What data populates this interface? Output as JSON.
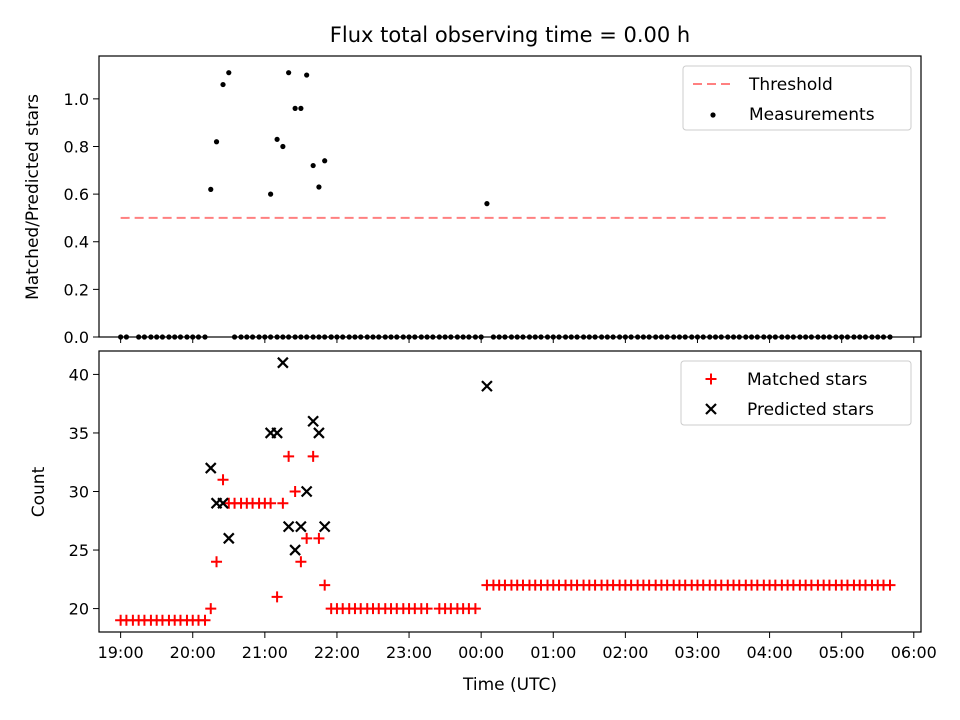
{
  "chart_data": [
    {
      "type": "scatter",
      "title": "Flux total observing time = 0.00 h",
      "xlabel": "",
      "ylabel": "Matched/Predicted stars",
      "xlim": [
        -0.3,
        11.1
      ],
      "ylim": [
        0,
        1.18
      ],
      "xticks": [
        0,
        1,
        2,
        3,
        4,
        5,
        6,
        7,
        8,
        9,
        10,
        11
      ],
      "xtick_labels": [
        "",
        "",
        "",
        "",
        "",
        "",
        "",
        "",
        "",
        "",
        "",
        ""
      ],
      "yticks": [
        0.0,
        0.2,
        0.4,
        0.6,
        0.8,
        1.0
      ],
      "ytick_labels": [
        "0.0",
        "0.2",
        "0.4",
        "0.6",
        "0.8",
        "1.0"
      ],
      "legend_position": "top-right",
      "legend": [
        "Threshold",
        "Measurements"
      ],
      "series": [
        {
          "name": "Threshold",
          "kind": "dashed-line",
          "color": "#ff8080",
          "x": [
            0.0,
            10.67
          ],
          "y": [
            0.5,
            0.5
          ]
        },
        {
          "name": "Measurements",
          "kind": "dot",
          "color": "#000000",
          "x": [
            0.0,
            0.08,
            0.25,
            0.33,
            0.42,
            0.5,
            0.58,
            0.67,
            0.75,
            0.83,
            0.92,
            1.0,
            1.08,
            1.17,
            1.25,
            1.33,
            1.42,
            1.5,
            1.58,
            1.67,
            1.75,
            1.83,
            1.92,
            2.0,
            2.08,
            2.17,
            2.25,
            2.33,
            2.42,
            2.5,
            2.58,
            2.67,
            2.75,
            2.83,
            2.92,
            3.0,
            3.08,
            3.17,
            3.25,
            3.33,
            3.42,
            3.5,
            3.58,
            3.67,
            3.75,
            3.83,
            3.92,
            4.0,
            4.08,
            4.17,
            4.25,
            4.33,
            4.42,
            4.5,
            4.58,
            4.67,
            4.75,
            4.83,
            4.92,
            5.0,
            5.08,
            5.17,
            5.25,
            5.33,
            5.42,
            5.5,
            5.58,
            5.67,
            5.75,
            5.83,
            5.92,
            6.0,
            6.08,
            6.17,
            6.25,
            6.33,
            6.42,
            6.5,
            6.58,
            6.67,
            6.75,
            6.83,
            6.92,
            7.0,
            7.08,
            7.17,
            7.25,
            7.33,
            7.42,
            7.5,
            7.58,
            7.67,
            7.75,
            7.83,
            7.92,
            8.0,
            8.08,
            8.17,
            8.25,
            8.33,
            8.42,
            8.5,
            8.58,
            8.67,
            8.75,
            8.83,
            8.92,
            9.0,
            9.08,
            9.17,
            9.25,
            9.33,
            9.42,
            9.5,
            9.58,
            9.67,
            9.75,
            9.83,
            9.92,
            10.0,
            10.08,
            10.17,
            10.25,
            10.33,
            10.42,
            10.5,
            10.58,
            10.67
          ],
          "y": [
            0,
            0,
            0,
            0,
            0,
            0,
            0,
            0,
            0,
            0,
            0,
            0,
            0,
            0,
            0.62,
            0.82,
            1.06,
            1.11,
            0,
            0,
            0,
            0,
            0,
            0,
            0,
            0,
            0,
            0,
            0,
            0,
            0,
            0,
            0,
            0,
            0,
            0,
            0,
            0,
            0,
            0,
            0,
            0,
            0,
            0,
            0,
            0,
            0,
            0,
            0,
            0,
            0,
            0,
            0,
            0,
            0,
            0,
            0,
            0,
            0,
            0,
            0.56,
            0,
            0,
            0,
            0,
            0,
            0,
            0,
            0,
            0,
            0,
            0,
            0,
            0,
            0,
            0,
            0,
            0,
            0,
            0,
            0,
            0,
            0,
            0,
            0,
            0,
            0,
            0,
            0,
            0,
            0,
            0,
            0,
            0,
            0,
            0,
            0,
            0,
            0,
            0,
            0,
            0,
            0,
            0,
            0,
            0,
            0,
            0,
            0,
            0,
            0,
            0,
            0,
            0,
            0,
            0,
            0,
            0,
            0,
            0,
            0,
            0,
            0,
            0,
            0,
            0,
            0,
            0
          ],
          "x_extra": [
            2.08,
            2.17,
            2.25,
            2.33,
            2.42,
            2.5,
            2.58,
            2.67,
            2.75,
            2.83,
            2.92
          ],
          "y_extra": [
            0.6,
            0.83,
            0.8,
            1.11,
            0.96,
            0.96,
            1.1,
            0.72,
            0.63,
            0.74,
            0
          ]
        }
      ]
    },
    {
      "type": "scatter",
      "title": "",
      "xlabel": "Time (UTC)",
      "ylabel": "Count",
      "xlim": [
        -0.3,
        11.1
      ],
      "ylim": [
        18,
        42
      ],
      "xticks": [
        0,
        1,
        2,
        3,
        4,
        5,
        6,
        7,
        8,
        9,
        10,
        11
      ],
      "xtick_labels": [
        "19:00",
        "20:00",
        "21:00",
        "22:00",
        "23:00",
        "00:00",
        "01:00",
        "02:00",
        "03:00",
        "04:00",
        "05:00",
        "06:00"
      ],
      "yticks": [
        20,
        25,
        30,
        35,
        40
      ],
      "ytick_labels": [
        "20",
        "25",
        "30",
        "35",
        "40"
      ],
      "legend_position": "top-right",
      "legend": [
        "Matched stars",
        "Predicted stars"
      ],
      "series": [
        {
          "name": "Matched stars",
          "kind": "plus",
          "color": "#ff0000",
          "x": [
            0.0,
            0.08,
            0.17,
            0.25,
            0.33,
            0.42,
            0.5,
            0.58,
            0.67,
            0.75,
            0.83,
            0.92,
            1.0,
            1.08,
            1.17,
            1.25,
            1.33,
            1.42,
            1.5,
            1.58,
            1.67,
            1.75,
            1.83,
            1.92,
            2.0,
            2.08,
            2.17,
            2.25,
            2.33,
            2.42,
            2.5,
            2.58,
            2.67,
            2.75,
            2.83,
            2.92,
            3.0,
            3.08,
            3.17,
            3.25,
            3.33,
            3.42,
            3.5,
            3.58,
            3.67,
            3.75,
            3.83,
            3.92,
            4.0,
            4.08,
            4.17,
            4.25,
            4.42,
            4.5,
            4.58,
            4.67,
            4.75,
            4.83,
            4.92,
            5.08,
            5.17,
            5.25,
            5.33,
            5.42,
            5.5,
            5.58,
            5.67,
            5.75,
            5.83,
            5.92,
            6.0,
            6.08,
            6.17,
            6.25,
            6.33,
            6.42,
            6.5,
            6.58,
            6.67,
            6.75,
            6.83,
            6.92,
            7.0,
            7.08,
            7.17,
            7.25,
            7.33,
            7.42,
            7.5,
            7.58,
            7.67,
            7.75,
            7.83,
            7.92,
            8.0,
            8.08,
            8.17,
            8.25,
            8.33,
            8.42,
            8.5,
            8.58,
            8.67,
            8.75,
            8.83,
            8.92,
            9.0,
            9.08,
            9.17,
            9.25,
            9.33,
            9.42,
            9.5,
            9.58,
            9.67,
            9.75,
            9.83,
            9.92,
            10.0,
            10.08,
            10.17,
            10.25,
            10.33,
            10.42,
            10.5,
            10.58,
            10.67
          ],
          "y": [
            19,
            19,
            19,
            19,
            19,
            19,
            19,
            19,
            19,
            19,
            19,
            19,
            19,
            19,
            19,
            20,
            24,
            31,
            29,
            29,
            29,
            29,
            29,
            29,
            29,
            29,
            21,
            29,
            33,
            30,
            24,
            26,
            33,
            26,
            22,
            20,
            20,
            20,
            20,
            20,
            20,
            20,
            20,
            20,
            20,
            20,
            20,
            20,
            20,
            20,
            20,
            20,
            20,
            20,
            20,
            20,
            20,
            20,
            20,
            22,
            22,
            22,
            22,
            22,
            22,
            22,
            22,
            22,
            22,
            22,
            22,
            22,
            22,
            22,
            22,
            22,
            22,
            22,
            22,
            22,
            22,
            22,
            22,
            22,
            22,
            22,
            22,
            22,
            22,
            22,
            22,
            22,
            22,
            22,
            22,
            22,
            22,
            22,
            22,
            22,
            22,
            22,
            22,
            22,
            22,
            22,
            22,
            22,
            22,
            22,
            22,
            22,
            22,
            22,
            22,
            22,
            22,
            22,
            22,
            22,
            22,
            22,
            22,
            22,
            22,
            22,
            22
          ]
        },
        {
          "name": "Predicted stars",
          "kind": "x",
          "color": "#000000",
          "x": [
            1.25,
            1.33,
            1.42,
            1.5,
            2.08,
            2.17,
            2.25,
            2.33,
            2.42,
            2.5,
            2.58,
            2.67,
            2.75,
            2.83,
            5.08
          ],
          "y": [
            32,
            29,
            29,
            26,
            35,
            35,
            41,
            27,
            25,
            27,
            30,
            36,
            35,
            27,
            39
          ]
        }
      ]
    }
  ]
}
